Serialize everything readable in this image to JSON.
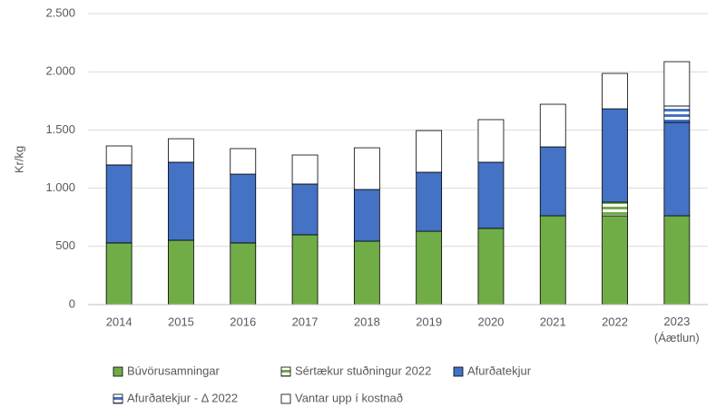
{
  "chart_data": {
    "type": "stacked_bar",
    "y_label": "Kr/kg",
    "categories": [
      "2014",
      "2015",
      "2016",
      "2017",
      "2018",
      "2019",
      "2020",
      "2021",
      "2022",
      "2023\n(Áætlun)"
    ],
    "series": [
      {
        "name": "Búvörusamningar",
        "color": "#70ad47",
        "pattern": "solid",
        "values": [
          530,
          553,
          530,
          600,
          545,
          630,
          655,
          763,
          763,
          763
        ]
      },
      {
        "name": "Sértækur stuðningur 2022",
        "color": "#70ad47",
        "pattern": "stripes",
        "values": [
          null,
          null,
          null,
          null,
          null,
          null,
          null,
          null,
          117,
          null
        ]
      },
      {
        "name": "Afurðatekjur",
        "color": "#4472c4",
        "pattern": "solid",
        "values": [
          670,
          670,
          591,
          436,
          444,
          507,
          568,
          592,
          802,
          802
        ]
      },
      {
        "name": "Afurðatekjur - Δ 2022",
        "color": "#4472c4",
        "pattern": "stripes",
        "values": [
          null,
          null,
          null,
          null,
          null,
          null,
          null,
          null,
          null,
          141
        ]
      },
      {
        "name": "Vantar upp í kostnað",
        "color": "#ffffff",
        "pattern": "solid",
        "values": [
          163,
          202,
          219,
          249,
          358,
          358,
          366,
          366,
          304,
          381
        ]
      }
    ],
    "ylim": [
      0,
      2500
    ],
    "yticks": [
      0,
      500,
      {
        "value": 1000,
        "label": "1.000"
      },
      {
        "value": 1500,
        "label": "1.500"
      },
      {
        "value": 2000,
        "label": "2.000"
      },
      {
        "value": 2500,
        "label": "2.500"
      }
    ],
    "grid": true
  }
}
